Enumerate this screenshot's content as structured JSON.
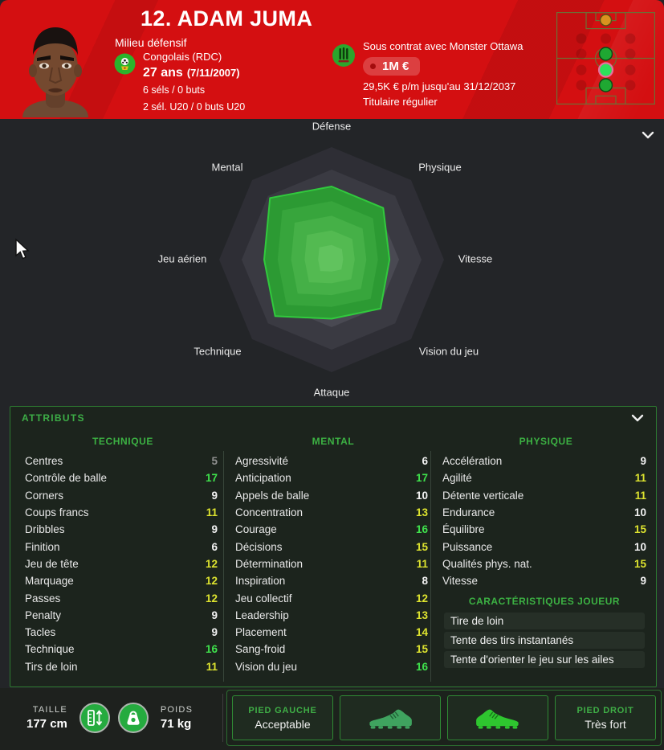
{
  "theme": {
    "accent_red": "#d40f11",
    "radar_green": "#2c9a33",
    "panel_green": "#3dae47",
    "highlight_ring_pink": "#e86fa0"
  },
  "icons": {
    "nation_badge": "rdc-crest-icon",
    "club_badge": "monster-ottawa-crest-icon",
    "value_tag": "price-tag",
    "chevron": "chevron-down",
    "height": "ruler-height-icon",
    "weight": "kettlebell-weight-icon",
    "left_boot": "left-football-boot",
    "right_boot": "right-football-boot",
    "cursor": "mouse-pointer"
  },
  "header": {
    "title": "12. ADAM JUMA",
    "position": "Milieu défensif",
    "nationality": "Congolais (RDC)",
    "age": "27 ans",
    "birthdate": "(7/11/2007)",
    "caps": "6 séls / 0 buts",
    "caps_u20": "2 sél. U20 / 0 buts U20",
    "contract_line": "Sous contrat avec Monster Ottawa",
    "value": "1M €",
    "wage_line": "29,5K € p/m jusqu'au 31/12/2037",
    "status": "Titulaire régulier"
  },
  "radar": {
    "axes": [
      "Défense",
      "Physique",
      "Vitesse",
      "Vision du jeu",
      "Attaque",
      "Technique",
      "Jeu aérien",
      "Mental"
    ],
    "values": [
      13,
      13,
      10.3,
      12.3,
      10.5,
      14.2,
      12,
      15.5
    ],
    "max": 20
  },
  "attributes": {
    "panel_title": "ATTRIBUTS",
    "value_colors": {
      "low": "#909090",
      "mid": "#f2f2f2",
      "good": "#dde32f",
      "excellent": "#3fe14c"
    },
    "columns": [
      {
        "header": "TECHNIQUE",
        "rows": [
          [
            "Centres",
            5
          ],
          [
            "Contrôle de balle",
            17
          ],
          [
            "Corners",
            9
          ],
          [
            "Coups francs",
            11
          ],
          [
            "Dribbles",
            9
          ],
          [
            "Finition",
            6
          ],
          [
            "Jeu de tête",
            12
          ],
          [
            "Marquage",
            12
          ],
          [
            "Passes",
            12
          ],
          [
            "Penalty",
            9
          ],
          [
            "Tacles",
            9
          ],
          [
            "Technique",
            16
          ],
          [
            "Tirs de loin",
            11
          ]
        ]
      },
      {
        "header": "MENTAL",
        "rows": [
          [
            "Agressivité",
            6
          ],
          [
            "Anticipation",
            17
          ],
          [
            "Appels de balle",
            10
          ],
          [
            "Concentration",
            13
          ],
          [
            "Courage",
            16
          ],
          [
            "Décisions",
            15
          ],
          [
            "Détermination",
            11
          ],
          [
            "Inspiration",
            8
          ],
          [
            "Jeu collectif",
            12
          ],
          [
            "Leadership",
            13
          ],
          [
            "Placement",
            14
          ],
          [
            "Sang-froid",
            15
          ],
          [
            "Vision du jeu",
            16
          ]
        ]
      },
      {
        "header": "PHYSIQUE",
        "rows": [
          [
            "Accélération",
            9
          ],
          [
            "Agilité",
            11
          ],
          [
            "Détente verticale",
            11
          ],
          [
            "Endurance",
            10
          ],
          [
            "Équilibre",
            15
          ],
          [
            "Puissance",
            10
          ],
          [
            "Qualités phys. nat.",
            15
          ],
          [
            "Vitesse",
            9
          ]
        ]
      }
    ],
    "traits": {
      "header": "CARACTÉRISTIQUES JOUEUR",
      "items": [
        "Tire de loin",
        "Tente des tirs instantanés",
        "Tente d'orienter le jeu sur les ailes"
      ]
    }
  },
  "footer": {
    "height_label": "TAILLE",
    "height_value": "177 cm",
    "weight_label": "POIDS",
    "weight_value": "71 kg",
    "left_foot_label": "PIED GAUCHE",
    "left_foot_value": "Acceptable",
    "right_foot_label": "PIED DROIT",
    "right_foot_value": "Très fort"
  }
}
